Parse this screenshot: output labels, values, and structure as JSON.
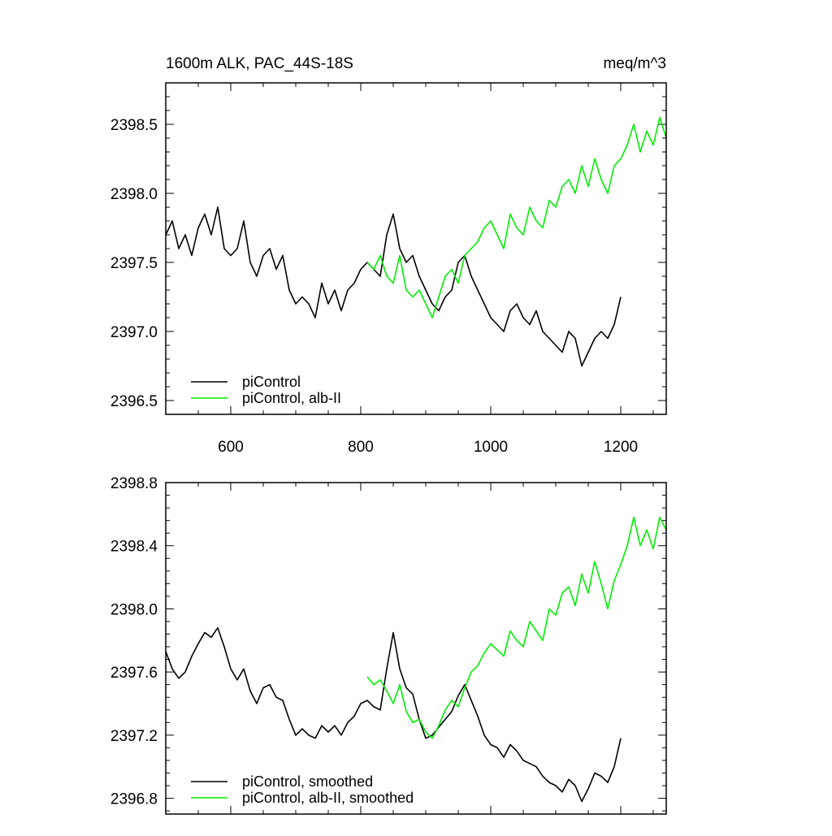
{
  "chart_data": [
    {
      "type": "line",
      "title": "1600m ALK, PAC_44S-18S",
      "title_right": "meq/m^3",
      "xlim": [
        500,
        1270
      ],
      "ylim": [
        2396.4,
        2398.8
      ],
      "x_ticks": [
        "600",
        "800",
        "1000",
        "1200"
      ],
      "y_ticks": [
        "2396.5",
        "2397.0",
        "2397.5",
        "2398.0",
        "2398.5"
      ],
      "legend_position": "bottom-left",
      "series": [
        {
          "name": "piControl",
          "color": "#000000",
          "x": [
            500,
            510,
            520,
            530,
            540,
            550,
            560,
            570,
            580,
            590,
            600,
            610,
            620,
            630,
            640,
            650,
            660,
            670,
            680,
            690,
            700,
            710,
            720,
            730,
            740,
            750,
            760,
            770,
            780,
            790,
            800,
            810,
            820,
            830,
            840,
            850,
            860,
            870,
            880,
            890,
            900,
            910,
            920,
            930,
            940,
            950,
            960,
            970,
            980,
            990,
            1000,
            1010,
            1020,
            1030,
            1040,
            1050,
            1060,
            1070,
            1080,
            1090,
            1100,
            1110,
            1120,
            1130,
            1140,
            1150,
            1160,
            1170,
            1180,
            1190,
            1200
          ],
          "y": [
            2397.7,
            2397.8,
            2397.6,
            2397.7,
            2397.55,
            2397.75,
            2397.85,
            2397.7,
            2397.9,
            2397.6,
            2397.55,
            2397.6,
            2397.8,
            2397.5,
            2397.4,
            2397.55,
            2397.6,
            2397.45,
            2397.55,
            2397.3,
            2397.2,
            2397.25,
            2397.2,
            2397.1,
            2397.35,
            2397.2,
            2397.3,
            2397.15,
            2397.3,
            2397.35,
            2397.45,
            2397.5,
            2397.45,
            2397.4,
            2397.7,
            2397.85,
            2397.6,
            2397.5,
            2397.55,
            2397.4,
            2397.3,
            2397.2,
            2397.15,
            2397.25,
            2397.3,
            2397.5,
            2397.55,
            2397.4,
            2397.3,
            2397.2,
            2397.1,
            2397.05,
            2397.0,
            2397.15,
            2397.2,
            2397.1,
            2397.05,
            2397.15,
            2397.0,
            2396.95,
            2396.9,
            2396.85,
            2397.0,
            2396.95,
            2396.75,
            2396.85,
            2396.95,
            2397.0,
            2396.95,
            2397.05,
            2397.25
          ]
        },
        {
          "name": "piControl, alb-II",
          "color": "#00ee00",
          "x": [
            810,
            820,
            830,
            840,
            850,
            860,
            870,
            880,
            890,
            900,
            910,
            920,
            930,
            940,
            950,
            960,
            970,
            980,
            990,
            1000,
            1010,
            1020,
            1030,
            1040,
            1050,
            1060,
            1070,
            1080,
            1090,
            1100,
            1110,
            1120,
            1130,
            1140,
            1150,
            1160,
            1170,
            1180,
            1190,
            1200,
            1210,
            1220,
            1230,
            1240,
            1250,
            1260,
            1270
          ],
          "y": [
            2397.5,
            2397.45,
            2397.55,
            2397.4,
            2397.35,
            2397.55,
            2397.3,
            2397.25,
            2397.3,
            2397.2,
            2397.1,
            2397.25,
            2397.4,
            2397.45,
            2397.35,
            2397.55,
            2397.6,
            2397.65,
            2397.75,
            2397.8,
            2397.7,
            2397.6,
            2397.85,
            2397.75,
            2397.7,
            2397.9,
            2397.8,
            2397.75,
            2397.95,
            2397.9,
            2398.05,
            2398.1,
            2398.0,
            2398.2,
            2398.05,
            2398.25,
            2398.1,
            2398.0,
            2398.2,
            2398.25,
            2398.35,
            2398.5,
            2398.3,
            2398.45,
            2398.35,
            2398.55,
            2398.4
          ]
        }
      ]
    },
    {
      "type": "line",
      "xlim": [
        500,
        1270
      ],
      "ylim": [
        2396.7,
        2398.8
      ],
      "y_ticks": [
        "2396.8",
        "2397.2",
        "2397.6",
        "2398.0",
        "2398.4",
        "2398.8"
      ],
      "legend_position": "bottom-left",
      "series": [
        {
          "name": "piControl, smoothed",
          "color": "#000000",
          "x": [
            500,
            510,
            520,
            530,
            540,
            550,
            560,
            570,
            580,
            590,
            600,
            610,
            620,
            630,
            640,
            650,
            660,
            670,
            680,
            690,
            700,
            710,
            720,
            730,
            740,
            750,
            760,
            770,
            780,
            790,
            800,
            810,
            820,
            830,
            840,
            850,
            860,
            870,
            880,
            890,
            900,
            910,
            920,
            930,
            940,
            950,
            960,
            970,
            980,
            990,
            1000,
            1010,
            1020,
            1030,
            1040,
            1050,
            1060,
            1070,
            1080,
            1090,
            1100,
            1110,
            1120,
            1130,
            1140,
            1150,
            1160,
            1170,
            1180,
            1190,
            1200
          ],
          "y": [
            2397.73,
            2397.62,
            2397.56,
            2397.6,
            2397.7,
            2397.78,
            2397.85,
            2397.82,
            2397.88,
            2397.76,
            2397.62,
            2397.55,
            2397.62,
            2397.48,
            2397.4,
            2397.5,
            2397.52,
            2397.44,
            2397.42,
            2397.3,
            2397.2,
            2397.24,
            2397.2,
            2397.18,
            2397.26,
            2397.22,
            2397.26,
            2397.2,
            2397.28,
            2397.32,
            2397.4,
            2397.42,
            2397.38,
            2397.36,
            2397.62,
            2397.85,
            2397.62,
            2397.5,
            2397.46,
            2397.3,
            2397.18,
            2397.2,
            2397.25,
            2397.3,
            2397.35,
            2397.45,
            2397.52,
            2397.42,
            2397.32,
            2397.2,
            2397.14,
            2397.12,
            2397.06,
            2397.14,
            2397.1,
            2397.04,
            2397.02,
            2397.0,
            2396.94,
            2396.9,
            2396.88,
            2396.84,
            2396.92,
            2396.88,
            2396.78,
            2396.86,
            2396.96,
            2396.94,
            2396.9,
            2397.0,
            2397.18
          ]
        },
        {
          "name": "piControl, alb-II, smoothed",
          "color": "#00ee00",
          "x": [
            810,
            820,
            830,
            840,
            850,
            860,
            870,
            880,
            890,
            900,
            910,
            920,
            930,
            940,
            950,
            960,
            970,
            980,
            990,
            1000,
            1010,
            1020,
            1030,
            1040,
            1050,
            1060,
            1070,
            1080,
            1090,
            1100,
            1110,
            1120,
            1130,
            1140,
            1150,
            1160,
            1170,
            1180,
            1190,
            1200,
            1210,
            1220,
            1230,
            1240,
            1250,
            1260,
            1270
          ],
          "y": [
            2397.57,
            2397.52,
            2397.55,
            2397.48,
            2397.4,
            2397.52,
            2397.35,
            2397.28,
            2397.3,
            2397.22,
            2397.18,
            2397.26,
            2397.36,
            2397.42,
            2397.38,
            2397.5,
            2397.6,
            2397.64,
            2397.72,
            2397.78,
            2397.74,
            2397.7,
            2397.86,
            2397.8,
            2397.76,
            2397.92,
            2397.86,
            2397.8,
            2398.0,
            2397.96,
            2398.1,
            2398.14,
            2398.02,
            2398.22,
            2398.1,
            2398.3,
            2398.16,
            2398.0,
            2398.18,
            2398.28,
            2398.4,
            2398.58,
            2398.4,
            2398.5,
            2398.38,
            2398.58,
            2398.5
          ]
        }
      ]
    }
  ]
}
